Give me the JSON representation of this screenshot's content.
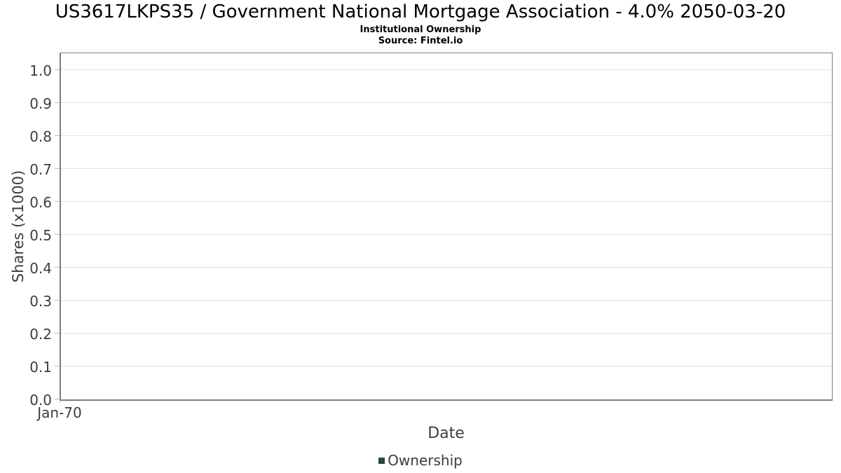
{
  "chart_data": {
    "type": "line",
    "title": "US3617LKPS35 / Government National Mortgage Association - 4.0% 2050-03-20",
    "subtitle": "Institutional Ownership",
    "source": "Source: Fintel.io",
    "xlabel": "Date",
    "ylabel": "Shares (x1000)",
    "x_tick_labels": [
      "Jan-70"
    ],
    "y_ticks": [
      0.0,
      0.1,
      0.2,
      0.3,
      0.4,
      0.5,
      0.6,
      0.7,
      0.8,
      0.9,
      1.0
    ],
    "y_tick_labels": [
      "0.0",
      "0.1",
      "0.2",
      "0.3",
      "0.4",
      "0.5",
      "0.6",
      "0.7",
      "0.8",
      "0.9",
      "1.0"
    ],
    "ylim": [
      0.0,
      1.057
    ],
    "grid": true,
    "legend": {
      "position": "bottom",
      "entries": [
        {
          "label": "Ownership",
          "marker_color": "#1e4e33"
        }
      ]
    },
    "series": [
      {
        "name": "Ownership",
        "color": "#1e4e33",
        "x": [],
        "values": []
      }
    ]
  }
}
